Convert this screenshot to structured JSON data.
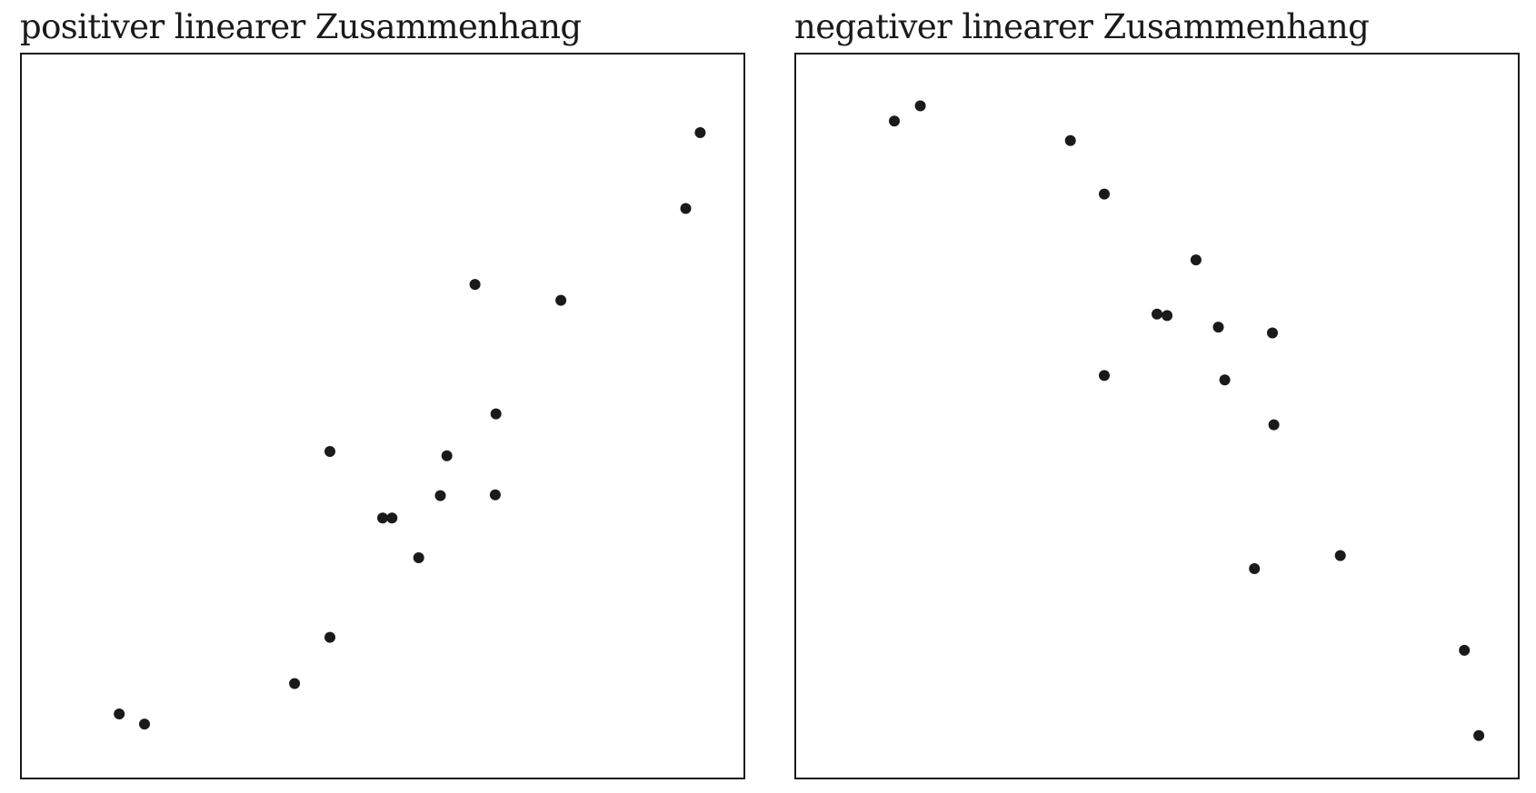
{
  "chart_data": [
    {
      "type": "scatter",
      "title": "positiver linearer Zusammenhang",
      "xlabel": "",
      "ylabel": "",
      "xlim": [
        0,
        100
      ],
      "ylim": [
        0,
        100
      ],
      "grid": false,
      "marker_color": "#1a1a1a",
      "points": [
        {
          "x": 13.5,
          "y": 8.8
        },
        {
          "x": 17.0,
          "y": 7.4
        },
        {
          "x": 37.8,
          "y": 13.0
        },
        {
          "x": 42.7,
          "y": 19.4
        },
        {
          "x": 42.7,
          "y": 45.1
        },
        {
          "x": 50.0,
          "y": 35.9
        },
        {
          "x": 51.3,
          "y": 35.9
        },
        {
          "x": 55.0,
          "y": 30.4
        },
        {
          "x": 58.0,
          "y": 39.0
        },
        {
          "x": 58.9,
          "y": 44.5
        },
        {
          "x": 62.8,
          "y": 68.2
        },
        {
          "x": 65.6,
          "y": 39.1
        },
        {
          "x": 65.7,
          "y": 50.3
        },
        {
          "x": 74.7,
          "y": 66.0
        },
        {
          "x": 92.0,
          "y": 78.7
        },
        {
          "x": 94.0,
          "y": 89.2
        }
      ]
    },
    {
      "type": "scatter",
      "title": "negativer linearer Zusammenhang",
      "xlabel": "",
      "ylabel": "",
      "xlim": [
        0,
        100
      ],
      "ylim": [
        0,
        100
      ],
      "grid": false,
      "marker_color": "#1a1a1a",
      "points": [
        {
          "x": 13.6,
          "y": 90.8
        },
        {
          "x": 17.2,
          "y": 92.9
        },
        {
          "x": 38.0,
          "y": 88.1
        },
        {
          "x": 42.7,
          "y": 80.7
        },
        {
          "x": 42.7,
          "y": 55.6
        },
        {
          "x": 50.0,
          "y": 64.1
        },
        {
          "x": 51.4,
          "y": 63.9
        },
        {
          "x": 55.4,
          "y": 71.6
        },
        {
          "x": 58.5,
          "y": 62.3
        },
        {
          "x": 59.4,
          "y": 55.0
        },
        {
          "x": 63.5,
          "y": 28.9
        },
        {
          "x": 66.0,
          "y": 61.5
        },
        {
          "x": 66.2,
          "y": 48.8
        },
        {
          "x": 75.4,
          "y": 30.7
        },
        {
          "x": 92.6,
          "y": 17.6
        },
        {
          "x": 94.6,
          "y": 5.8
        }
      ]
    }
  ]
}
